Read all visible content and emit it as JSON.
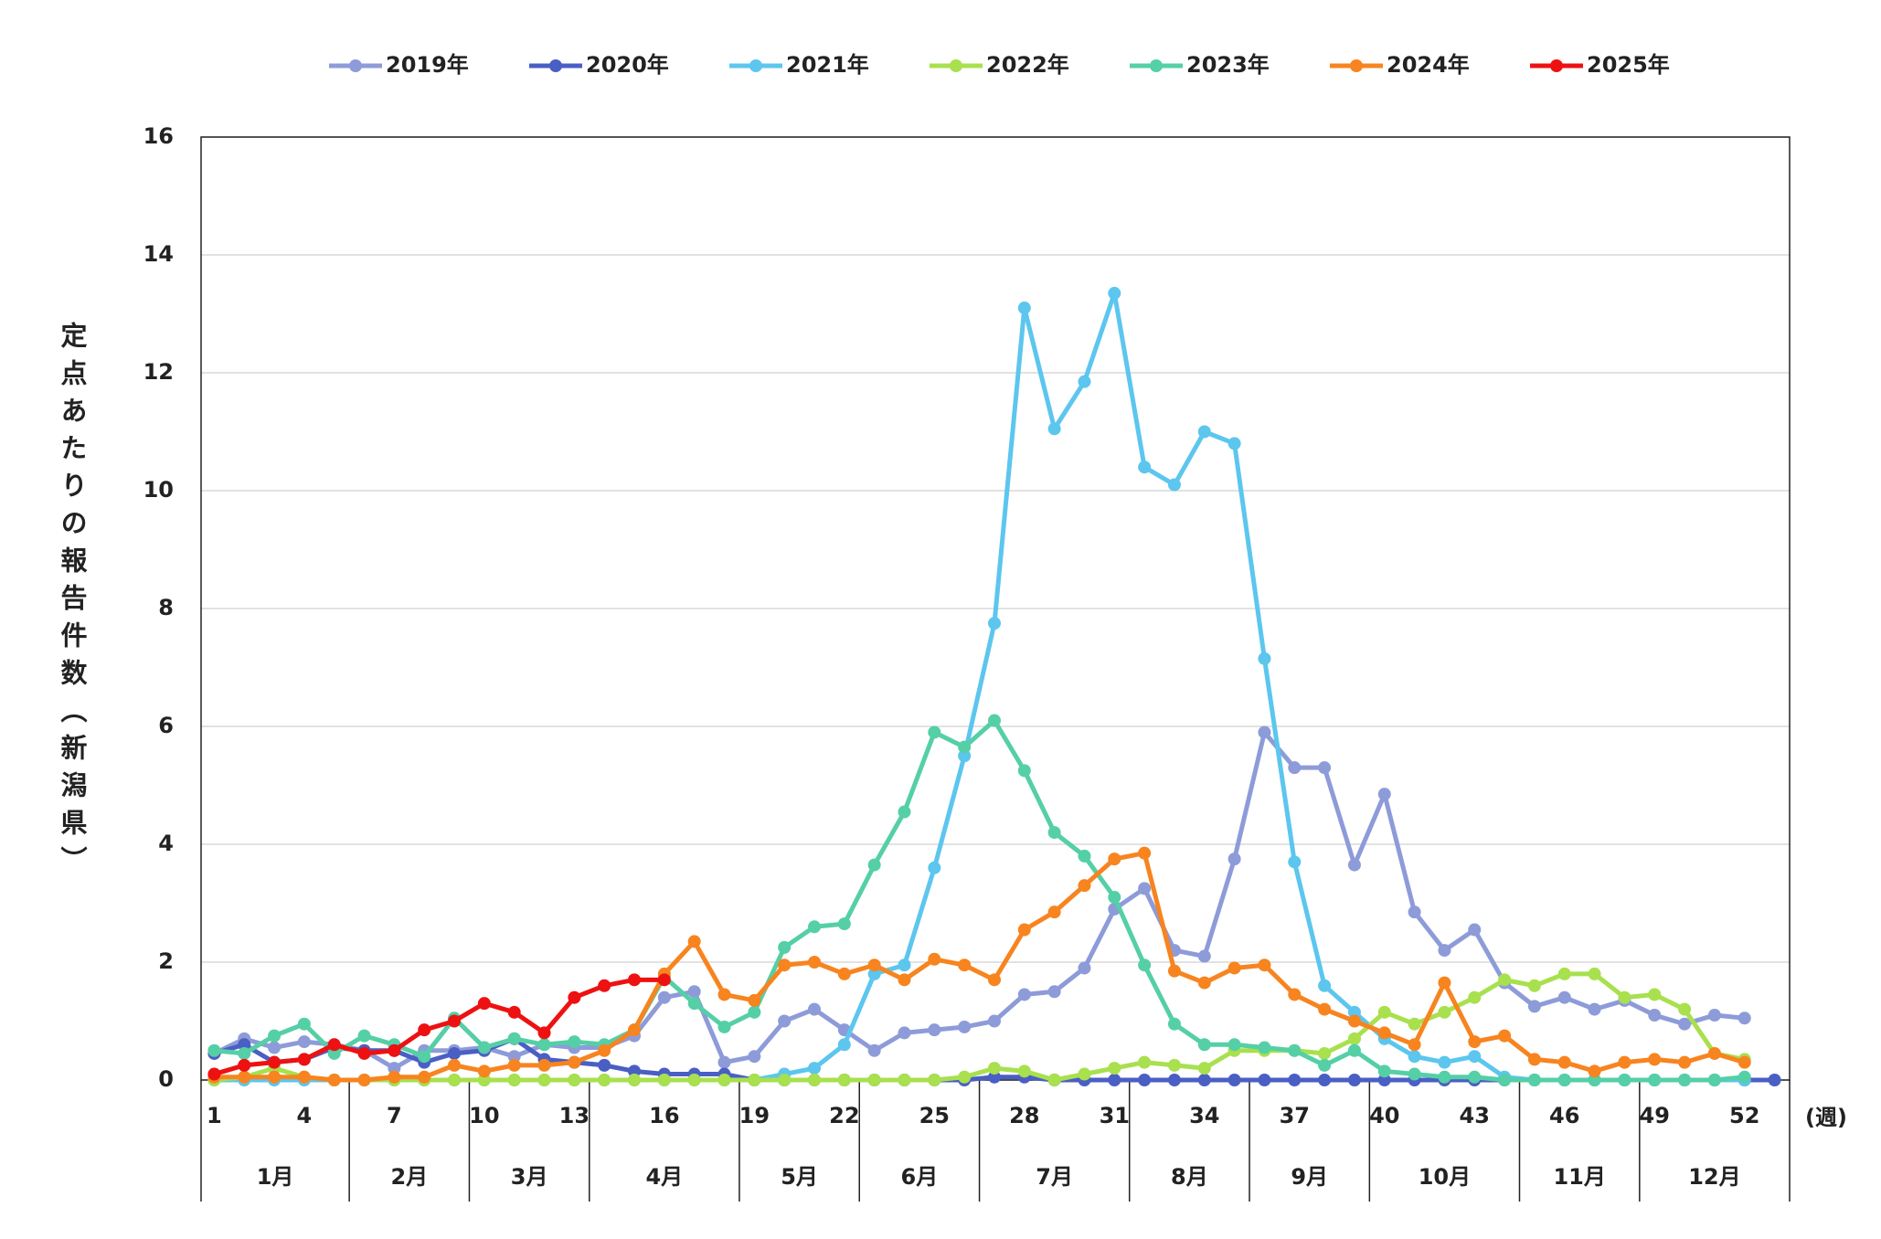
{
  "chart_data": {
    "type": "line",
    "y_label": "定点あたりの報告件数（新潟県）",
    "x_label": "(週)",
    "categories": [
      "1",
      null,
      null,
      "4",
      null,
      null,
      "7",
      null,
      null,
      "10",
      null,
      null,
      "13",
      null,
      null,
      "16",
      null,
      null,
      "19",
      null,
      null,
      "22",
      null,
      null,
      "25",
      null,
      null,
      "28",
      null,
      null,
      "31",
      null,
      null,
      "34",
      null,
      null,
      "37",
      null,
      null,
      "40",
      null,
      null,
      "43",
      null,
      null,
      "46",
      null,
      null,
      "49",
      null,
      null,
      "52",
      null
    ],
    "months": [
      "1月",
      "2月",
      "3月",
      "4月",
      "5月",
      "6月",
      "7月",
      "8月",
      "9月",
      "10月",
      "11月",
      "12月"
    ],
    "ylim": [
      0,
      16
    ],
    "yticks": [
      0,
      2,
      4,
      6,
      8,
      10,
      12,
      14,
      16
    ],
    "grid": true,
    "legend": "top",
    "series": [
      {
        "name": "2019年",
        "color": "#8e9bd9",
        "values": [
          0.45,
          0.7,
          0.55,
          0.65,
          0.6,
          0.5,
          0.2,
          0.5,
          0.5,
          0.55,
          0.4,
          0.6,
          0.55,
          0.55,
          0.75,
          1.4,
          1.5,
          0.3,
          0.4,
          1.0,
          1.2,
          0.85,
          0.5,
          0.8,
          0.85,
          0.9,
          1.0,
          1.45,
          1.5,
          1.9,
          2.9,
          3.25,
          2.2,
          2.1,
          3.75,
          5.9,
          5.3,
          5.3,
          3.65,
          4.85,
          2.85,
          2.2,
          2.55,
          1.65,
          1.25,
          1.4,
          1.2,
          1.35,
          1.1,
          0.95,
          1.1,
          1.05,
          null
        ]
      },
      {
        "name": "2020年",
        "color": "#4a5fc4",
        "values": [
          0.45,
          0.6,
          0.3,
          0.35,
          0.55,
          0.5,
          0.5,
          0.3,
          0.45,
          0.5,
          0.7,
          0.35,
          0.3,
          0.25,
          0.15,
          0.1,
          0.1,
          0.1,
          0,
          0,
          0,
          0,
          0,
          0,
          0,
          0,
          0.05,
          0.05,
          0,
          0,
          0,
          0,
          0,
          0,
          0,
          0,
          0,
          0,
          0,
          0,
          0,
          0,
          0,
          0,
          0,
          0,
          0,
          0,
          0,
          0,
          0,
          0,
          0
        ]
      },
      {
        "name": "2021年",
        "color": "#5cc6ee",
        "values": [
          0,
          0,
          0,
          0,
          0,
          0,
          0,
          0,
          0,
          0,
          0,
          0,
          0,
          0,
          0,
          0,
          0,
          0,
          0,
          0.1,
          0.2,
          0.6,
          1.8,
          1.95,
          3.6,
          5.5,
          7.75,
          13.1,
          11.05,
          11.85,
          13.35,
          10.4,
          10.1,
          11.0,
          10.8,
          7.15,
          3.7,
          1.6,
          1.15,
          0.7,
          0.4,
          0.3,
          0.4,
          0.05,
          0,
          0,
          0,
          0,
          0,
          0,
          0,
          0,
          null
        ]
      },
      {
        "name": "2022年",
        "color": "#a8e04e",
        "values": [
          0,
          0.05,
          0.2,
          0.05,
          0,
          0,
          0,
          0,
          0,
          0,
          0,
          0,
          0,
          0,
          0,
          0,
          0,
          0,
          0,
          0,
          0,
          0,
          0,
          0,
          0,
          0.05,
          0.2,
          0.15,
          0,
          0.1,
          0.2,
          0.3,
          0.25,
          0.2,
          0.5,
          0.5,
          0.5,
          0.45,
          0.7,
          1.15,
          0.95,
          1.15,
          1.4,
          1.7,
          1.6,
          1.8,
          1.8,
          1.4,
          1.45,
          1.2,
          0.45,
          0.35,
          null
        ]
      },
      {
        "name": "2023年",
        "color": "#55cfa6",
        "values": [
          0.5,
          0.45,
          0.75,
          0.95,
          0.45,
          0.75,
          0.6,
          0.4,
          1.05,
          0.55,
          0.7,
          0.6,
          0.65,
          0.6,
          0.85,
          1.75,
          1.3,
          0.9,
          1.15,
          2.25,
          2.6,
          2.65,
          3.65,
          4.55,
          5.9,
          5.65,
          6.1,
          5.25,
          4.2,
          3.8,
          3.1,
          1.95,
          0.95,
          0.6,
          0.6,
          0.55,
          0.5,
          0.25,
          0.5,
          0.15,
          0.1,
          0.05,
          0.05,
          0,
          0,
          0,
          0,
          0,
          0,
          0,
          0,
          0.05,
          null
        ]
      },
      {
        "name": "2024年",
        "color": "#f7841f",
        "values": [
          0.05,
          0.05,
          0.05,
          0.05,
          0,
          0,
          0.05,
          0.05,
          0.25,
          0.15,
          0.25,
          0.25,
          0.3,
          0.5,
          0.85,
          1.8,
          2.35,
          1.45,
          1.35,
          1.95,
          2.0,
          1.8,
          1.95,
          1.7,
          2.05,
          1.95,
          1.7,
          2.55,
          2.85,
          3.3,
          3.75,
          3.85,
          1.85,
          1.65,
          1.9,
          1.95,
          1.45,
          1.2,
          1.0,
          0.8,
          0.6,
          1.65,
          0.65,
          0.75,
          0.35,
          0.3,
          0.15,
          0.3,
          0.35,
          0.3,
          0.45,
          0.3,
          null
        ]
      },
      {
        "name": "2025年",
        "color": "#ee1111",
        "values": [
          0.1,
          0.25,
          0.3,
          0.35,
          0.6,
          0.45,
          0.5,
          0.85,
          1.0,
          1.3,
          1.15,
          0.8,
          1.4,
          1.6,
          1.7,
          1.7,
          null,
          null,
          null,
          null,
          null,
          null,
          null,
          null,
          null,
          null,
          null,
          null,
          null,
          null,
          null,
          null,
          null,
          null,
          null,
          null,
          null,
          null,
          null,
          null,
          null,
          null,
          null,
          null,
          null,
          null,
          null,
          null,
          null,
          null,
          null,
          null,
          null
        ]
      }
    ]
  }
}
